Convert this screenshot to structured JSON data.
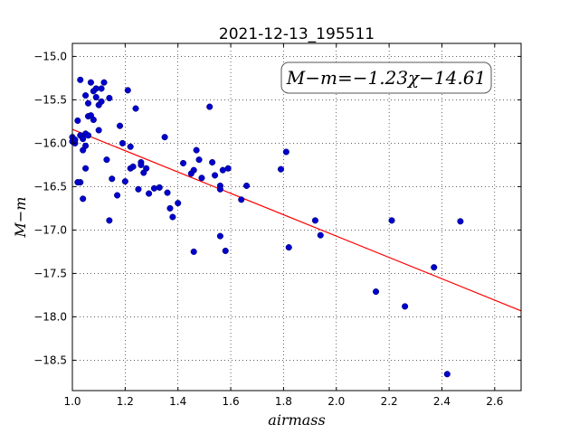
{
  "chart_data": {
    "type": "scatter",
    "title": "2021-12-13_195511",
    "xlabel": "airmass",
    "ylabel": "M−m",
    "annotation": "M−m=−1.23χ−14.61",
    "xlim": [
      1.0,
      2.7
    ],
    "ylim": [
      -18.85,
      -14.85
    ],
    "y_inverted": true,
    "grid": true,
    "x_ticks": [
      1.0,
      1.2,
      1.4,
      1.6,
      1.8,
      2.0,
      2.2,
      2.4,
      2.6
    ],
    "x_tick_labels": [
      "1.0",
      "1.2",
      "1.4",
      "1.6",
      "1.8",
      "2.0",
      "2.2",
      "2.4",
      "2.6"
    ],
    "y_ticks": [
      -15.0,
      -15.5,
      -16.0,
      -16.5,
      -17.0,
      -17.5,
      -18.0,
      -18.5
    ],
    "y_tick_labels": [
      "−15.0",
      "−15.5",
      "−16.0",
      "−16.5",
      "−17.0",
      "−17.5",
      "−18.0",
      "−18.5"
    ],
    "points_color": "#0000cc",
    "fit_color": "#ff0000",
    "fit_line": {
      "slope": -1.23,
      "intercept": -14.61
    },
    "points": [
      [
        1.0,
        -15.93
      ],
      [
        1.0,
        -15.98
      ],
      [
        1.01,
        -16.0
      ],
      [
        1.01,
        -15.96
      ],
      [
        1.02,
        -15.74
      ],
      [
        1.03,
        -15.27
      ],
      [
        1.03,
        -15.91
      ],
      [
        1.04,
        -15.95
      ],
      [
        1.04,
        -16.08
      ],
      [
        1.05,
        -15.45
      ],
      [
        1.05,
        -16.03
      ],
      [
        1.05,
        -15.89
      ],
      [
        1.06,
        -15.69
      ],
      [
        1.06,
        -15.91
      ],
      [
        1.06,
        -15.54
      ],
      [
        1.07,
        -15.3
      ],
      [
        1.07,
        -15.68
      ],
      [
        1.08,
        -15.73
      ],
      [
        1.08,
        -15.4
      ],
      [
        1.09,
        -15.47
      ],
      [
        1.09,
        -15.37
      ],
      [
        1.1,
        -15.56
      ],
      [
        1.1,
        -15.85
      ],
      [
        1.11,
        -15.37
      ],
      [
        1.11,
        -15.52
      ],
      [
        1.12,
        -15.3
      ],
      [
        1.13,
        -16.19
      ],
      [
        1.14,
        -15.48
      ],
      [
        1.05,
        -16.29
      ],
      [
        1.03,
        -16.45
      ],
      [
        1.04,
        -16.64
      ],
      [
        1.02,
        -16.45
      ],
      [
        1.14,
        -16.89
      ],
      [
        1.15,
        -16.41
      ],
      [
        1.17,
        -16.6
      ],
      [
        1.18,
        -15.8
      ],
      [
        1.19,
        -16.0
      ],
      [
        1.2,
        -16.44
      ],
      [
        1.21,
        -15.39
      ],
      [
        1.22,
        -16.04
      ],
      [
        1.22,
        -16.29
      ],
      [
        1.23,
        -16.27
      ],
      [
        1.24,
        -15.6
      ],
      [
        1.25,
        -16.53
      ],
      [
        1.26,
        -16.22
      ],
      [
        1.26,
        -16.25
      ],
      [
        1.27,
        -16.34
      ],
      [
        1.28,
        -16.29
      ],
      [
        1.29,
        -16.58
      ],
      [
        1.31,
        -16.52
      ],
      [
        1.33,
        -16.51
      ],
      [
        1.35,
        -15.93
      ],
      [
        1.36,
        -16.57
      ],
      [
        1.37,
        -16.75
      ],
      [
        1.38,
        -16.85
      ],
      [
        1.4,
        -16.69
      ],
      [
        1.42,
        -16.23
      ],
      [
        1.45,
        -16.35
      ],
      [
        1.46,
        -16.31
      ],
      [
        1.46,
        -17.25
      ],
      [
        1.47,
        -16.08
      ],
      [
        1.48,
        -16.19
      ],
      [
        1.49,
        -16.4
      ],
      [
        1.52,
        -15.58
      ],
      [
        1.53,
        -16.22
      ],
      [
        1.54,
        -16.37
      ],
      [
        1.56,
        -16.49
      ],
      [
        1.56,
        -16.53
      ],
      [
        1.56,
        -17.07
      ],
      [
        1.57,
        -16.31
      ],
      [
        1.58,
        -17.24
      ],
      [
        1.59,
        -16.29
      ],
      [
        1.64,
        -16.65
      ],
      [
        1.66,
        -16.49
      ],
      [
        1.79,
        -16.3
      ],
      [
        1.81,
        -16.1
      ],
      [
        1.82,
        -17.2
      ],
      [
        1.92,
        -16.89
      ],
      [
        1.94,
        -17.06
      ],
      [
        2.15,
        -17.71
      ],
      [
        2.21,
        -16.89
      ],
      [
        2.26,
        -17.88
      ],
      [
        2.37,
        -17.43
      ],
      [
        2.42,
        -18.66
      ],
      [
        2.47,
        -16.9
      ]
    ]
  }
}
